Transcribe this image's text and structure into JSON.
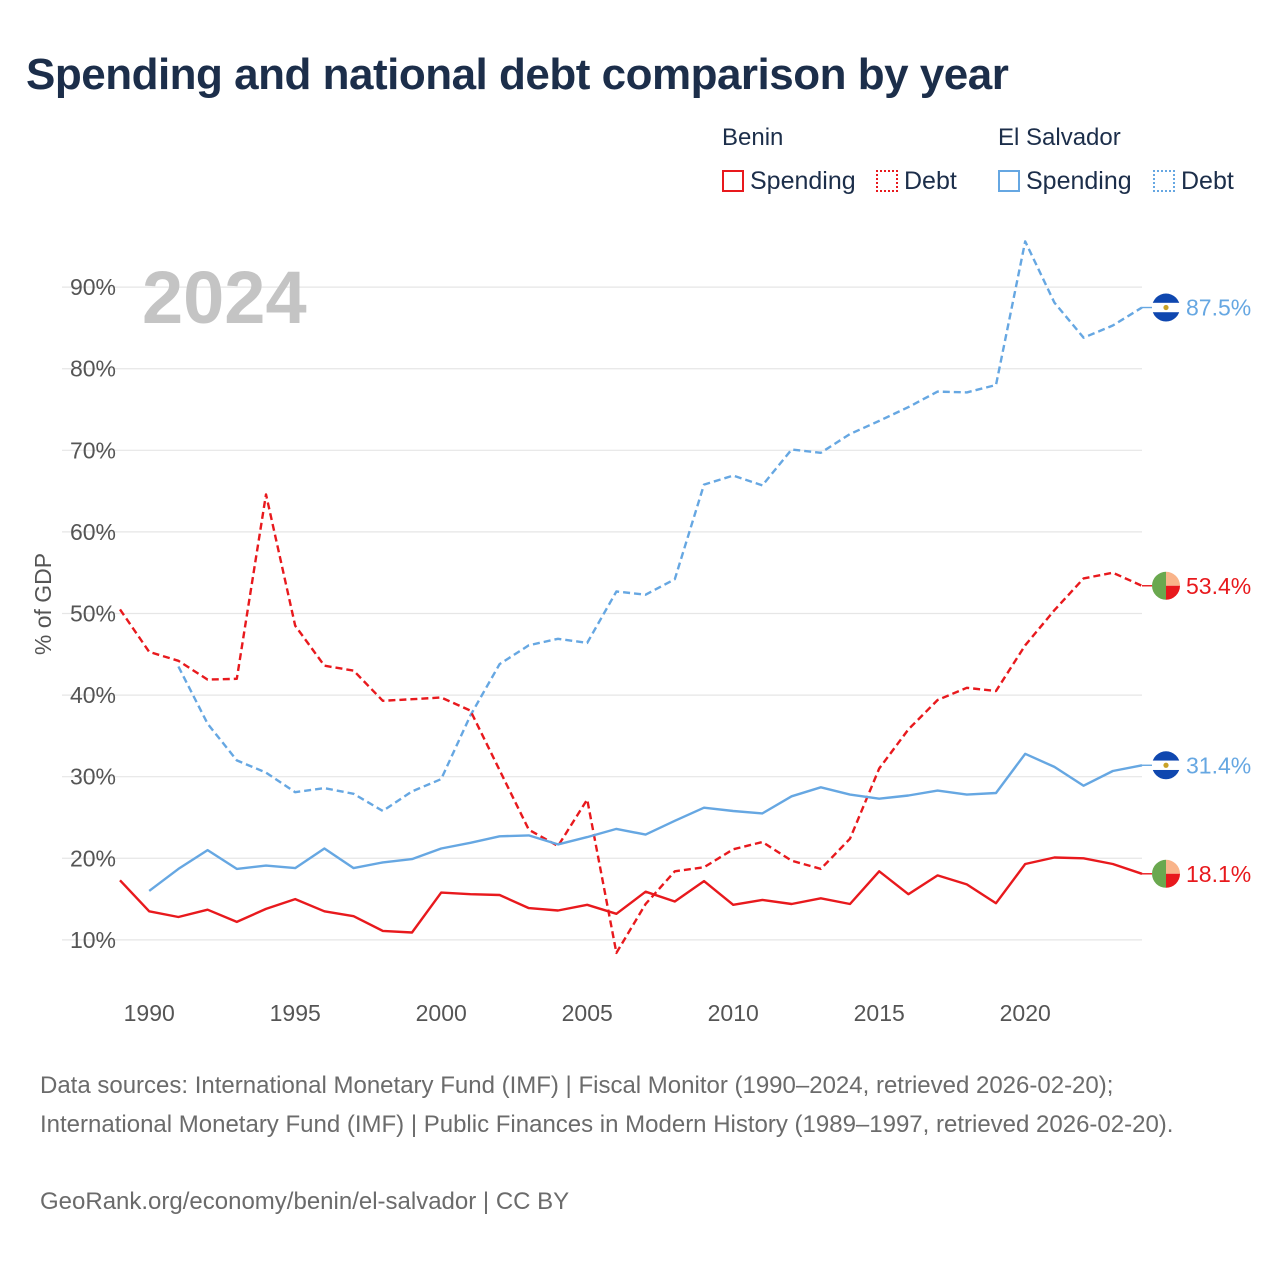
{
  "title": "Spending and national debt comparison by year",
  "legend": {
    "groups": [
      {
        "country": "Benin",
        "color": "#e8191d",
        "spending_label": "Spending",
        "debt_label": "Debt"
      },
      {
        "country": "El Salvador",
        "color": "#66a7e2",
        "spending_label": "Spending",
        "debt_label": "Debt"
      }
    ]
  },
  "year_watermark": "2024",
  "chart_data": {
    "type": "line",
    "title": "Spending and national debt comparison by year",
    "xlabel": "",
    "ylabel": "% of GDP",
    "xlim": [
      1989,
      2024
    ],
    "ylim": [
      3,
      97
    ],
    "x_ticks": [
      1990,
      1995,
      2000,
      2005,
      2010,
      2015,
      2020
    ],
    "y_ticks": [
      10,
      20,
      30,
      40,
      50,
      60,
      70,
      80,
      90
    ],
    "y_tick_labels": [
      "10%",
      "20%",
      "30%",
      "40%",
      "50%",
      "60%",
      "70%",
      "80%",
      "90%"
    ],
    "grid": true,
    "series": [
      {
        "name": "El Salvador Debt",
        "country": "El Salvador",
        "measure": "Debt",
        "style": "dashed",
        "color": "#66a7e2",
        "x": [
          1991,
          1992,
          1993,
          1994,
          1995,
          1996,
          1997,
          1998,
          1999,
          2000,
          2001,
          2002,
          2003,
          2004,
          2005,
          2006,
          2007,
          2008,
          2009,
          2010,
          2011,
          2012,
          2013,
          2014,
          2015,
          2016,
          2017,
          2018,
          2019,
          2020,
          2021,
          2022,
          2023,
          2024
        ],
        "values": [
          43.5,
          36.5,
          32,
          30.5,
          28.1,
          28.6,
          27.9,
          25.8,
          28.2,
          29.7,
          37.5,
          43.8,
          46.1,
          46.9,
          46.4,
          52.7,
          52.3,
          54.2,
          65.8,
          66.9,
          65.7,
          70.1,
          69.7,
          72,
          73.6,
          75.3,
          77.2,
          77.1,
          78,
          95.6,
          88.1,
          83.8,
          85.3,
          87.5
        ],
        "end_label": "87.5%"
      },
      {
        "name": "Benin Debt",
        "country": "Benin",
        "measure": "Debt",
        "style": "dashed",
        "color": "#e8191d",
        "x": [
          1989,
          1990,
          1991,
          1992,
          1993,
          1994,
          1995,
          1996,
          1997,
          1998,
          1999,
          2000,
          2001,
          2002,
          2003,
          2004,
          2005,
          2006,
          2007,
          2008,
          2009,
          2010,
          2011,
          2012,
          2013,
          2014,
          2015,
          2016,
          2017,
          2018,
          2019,
          2020,
          2021,
          2022,
          2023,
          2024
        ],
        "values": [
          50.5,
          45.3,
          44.2,
          41.9,
          42,
          64.6,
          48.5,
          43.6,
          43,
          39.3,
          39.5,
          39.7,
          38.1,
          30.8,
          23.5,
          21.5,
          27.2,
          8.4,
          14.4,
          18.4,
          18.9,
          21.1,
          22,
          19.7,
          18.7,
          22.4,
          31,
          35.8,
          39.4,
          40.9,
          40.5,
          46.1,
          50.4,
          54.3,
          55,
          53.4
        ],
        "end_label": "53.4%"
      },
      {
        "name": "El Salvador Spending",
        "country": "El Salvador",
        "measure": "Spending",
        "style": "solid",
        "color": "#66a7e2",
        "x": [
          1990,
          1991,
          1992,
          1993,
          1994,
          1995,
          1996,
          1997,
          1998,
          1999,
          2000,
          2001,
          2002,
          2003,
          2004,
          2005,
          2006,
          2007,
          2008,
          2009,
          2010,
          2011,
          2012,
          2013,
          2014,
          2015,
          2016,
          2017,
          2018,
          2019,
          2020,
          2021,
          2022,
          2023,
          2024
        ],
        "values": [
          16,
          18.7,
          21,
          18.7,
          19.1,
          18.8,
          21.2,
          18.8,
          19.5,
          19.9,
          21.2,
          21.9,
          22.7,
          22.8,
          21.7,
          22.6,
          23.6,
          22.9,
          24.6,
          26.2,
          25.8,
          25.5,
          27.6,
          28.7,
          27.8,
          27.3,
          27.7,
          28.3,
          27.8,
          28,
          32.8,
          31.2,
          28.9,
          30.7,
          31.4
        ],
        "end_label": "31.4%"
      },
      {
        "name": "Benin Spending",
        "country": "Benin",
        "measure": "Spending",
        "style": "solid",
        "color": "#e8191d",
        "x": [
          1989,
          1990,
          1991,
          1992,
          1993,
          1994,
          1995,
          1996,
          1997,
          1998,
          1999,
          2000,
          2001,
          2002,
          2003,
          2004,
          2005,
          2006,
          2007,
          2008,
          2009,
          2010,
          2011,
          2012,
          2013,
          2014,
          2015,
          2016,
          2017,
          2018,
          2019,
          2020,
          2021,
          2022,
          2023,
          2024
        ],
        "values": [
          17.3,
          13.5,
          12.8,
          13.7,
          12.2,
          13.8,
          15,
          13.5,
          12.9,
          11.1,
          10.9,
          15.8,
          15.6,
          15.5,
          13.9,
          13.6,
          14.3,
          13.2,
          15.9,
          14.7,
          17.2,
          14.3,
          14.9,
          14.4,
          15.1,
          14.4,
          18.4,
          15.6,
          17.9,
          16.8,
          14.5,
          19.3,
          20.1,
          20,
          19.3,
          18.1
        ],
        "end_label": "18.1%"
      }
    ]
  },
  "footer": {
    "sources": "Data sources: International Monetary Fund (IMF) | Fiscal Monitor (1990–2024, retrieved 2026-02-20); International Monetary Fund (IMF) | Public Finances in Modern History (1989–1997, retrieved 2026-02-20).",
    "attribution": "GeoRank.org/economy/benin/el-salvador | CC BY"
  },
  "colors": {
    "title": "#1c2e4a",
    "axis_text": "#555555",
    "grid": "#e6e6e6",
    "watermark": "#c4c4c4",
    "footer": "#6b6b6b"
  }
}
